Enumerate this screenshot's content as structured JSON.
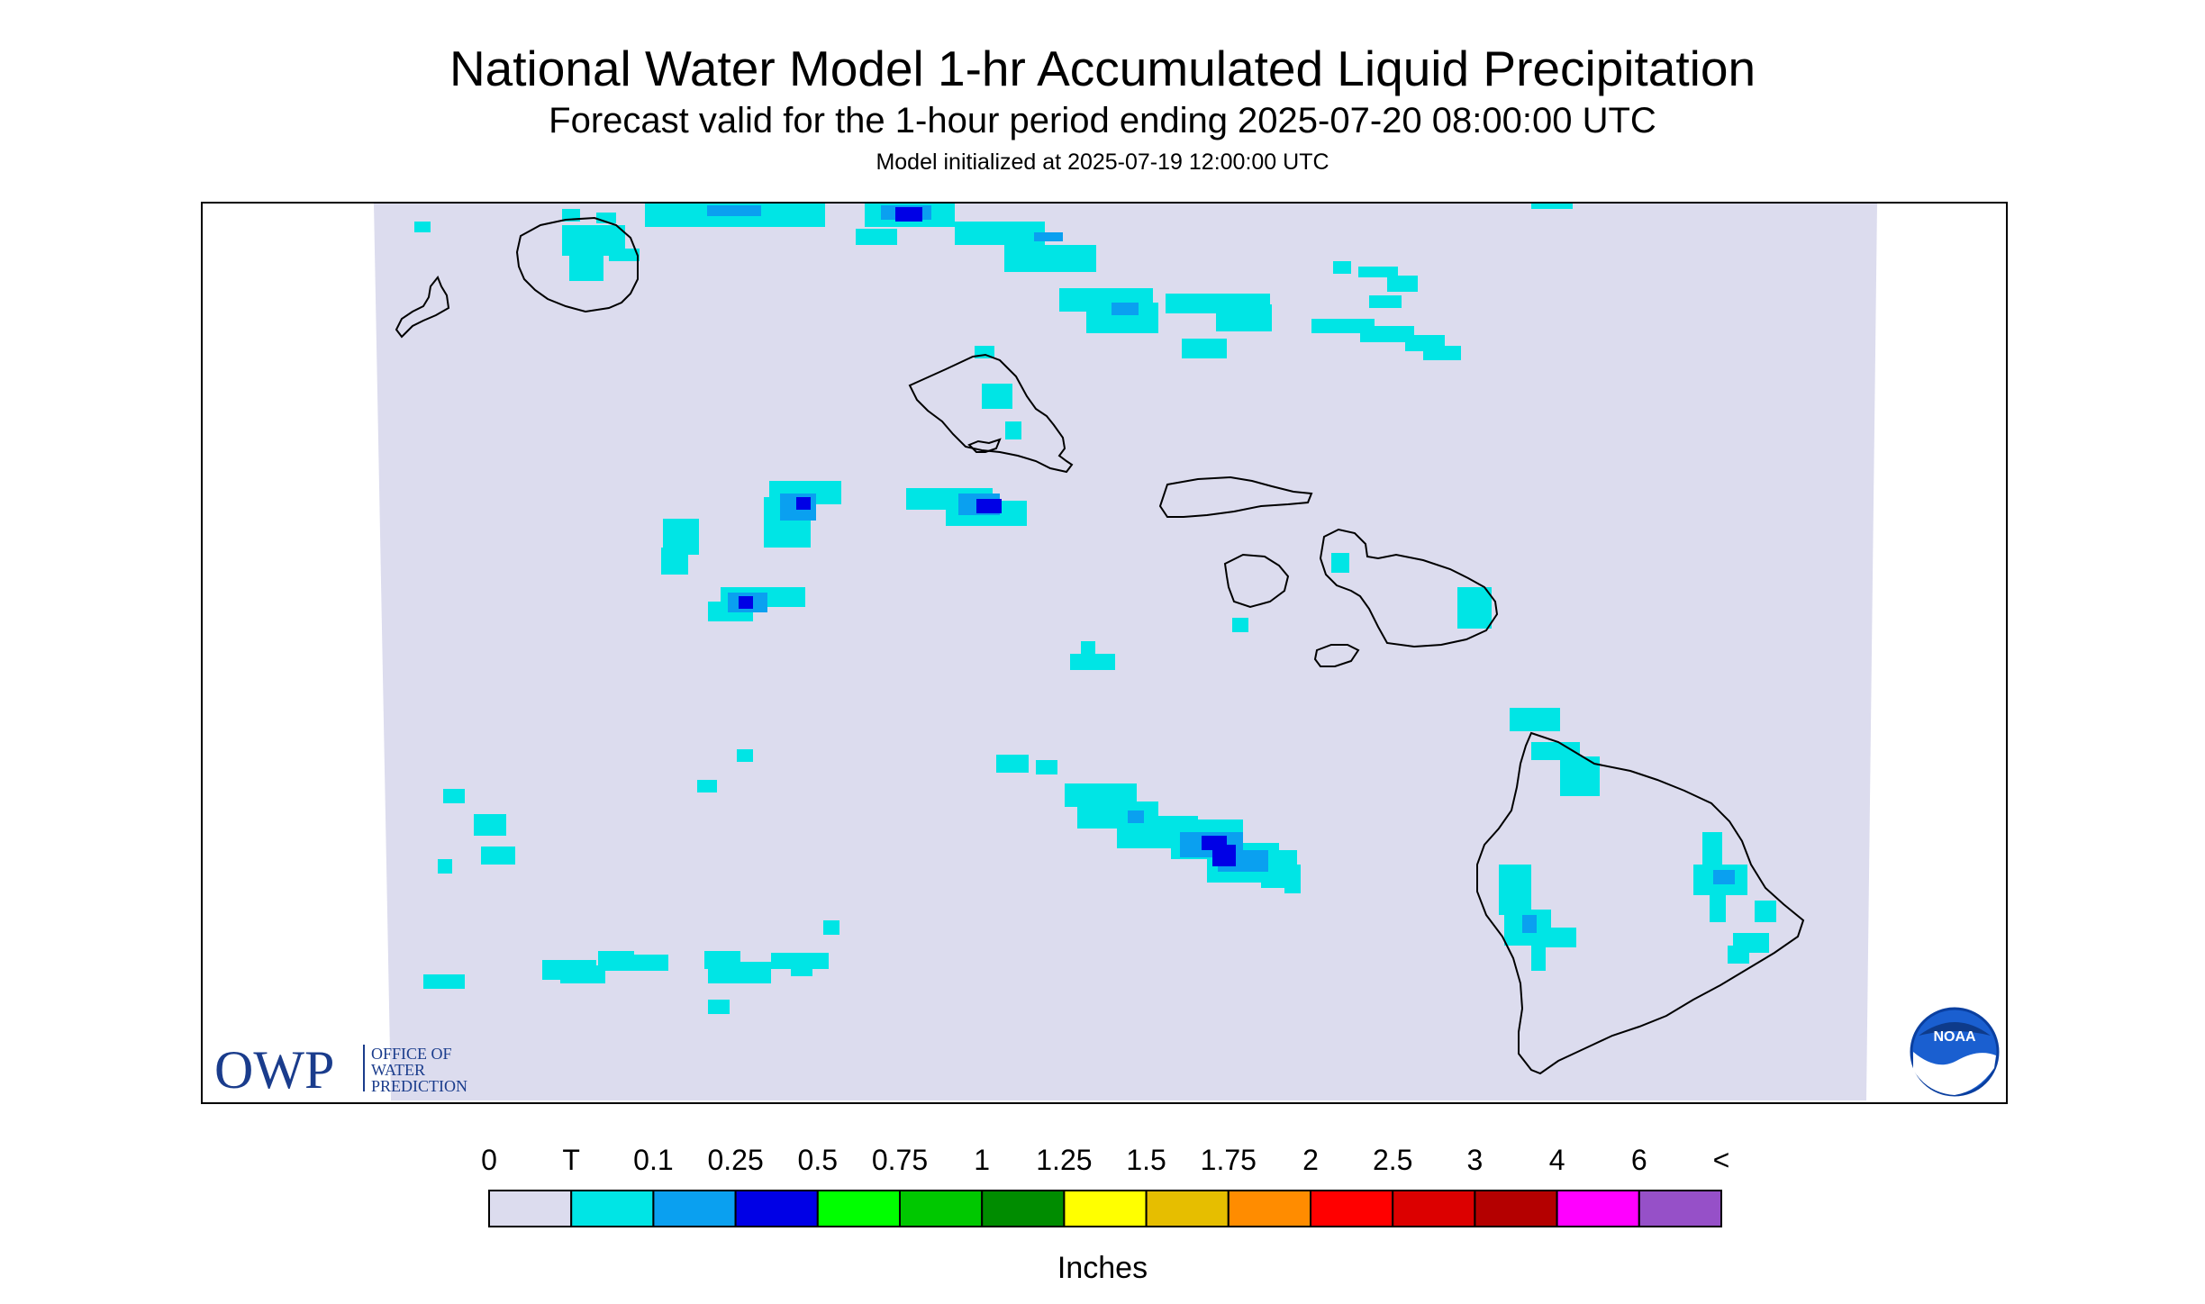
{
  "title": "National Water Model 1-hr Accumulated Liquid Precipitation",
  "subtitle": "Forecast valid for the 1-hour period ending 2025-07-20 08:00:00 UTC",
  "initialized": "Model initialized at 2025-07-19 12:00:00 UTC",
  "colors": {
    "background": "#dcdcee",
    "trace": "#00e5e5",
    "light": "#0aa0f0",
    "moderate": "#0000e6",
    "coastline": "#000000"
  },
  "colorbar": {
    "labels": [
      "0",
      "T",
      "0.1",
      "0.25",
      "0.5",
      "0.75",
      "1",
      "1.25",
      "1.5",
      "1.75",
      "2",
      "2.5",
      "3",
      "4",
      "6",
      "<"
    ],
    "colors": [
      "#dcdcee",
      "#00e5e5",
      "#0aa0f0",
      "#0000e6",
      "#00ff00",
      "#00c800",
      "#008c00",
      "#ffff00",
      "#e6be00",
      "#ff8c00",
      "#ff0000",
      "#dc0000",
      "#b40000",
      "#ff00ff",
      "#9650c8"
    ],
    "units": "Inches"
  },
  "logos": {
    "owp_short": "OWP",
    "owp_line1": "OFFICE OF",
    "owp_line2": "WATER",
    "owp_line3": "PREDICTION",
    "noaa": "NOAA"
  }
}
